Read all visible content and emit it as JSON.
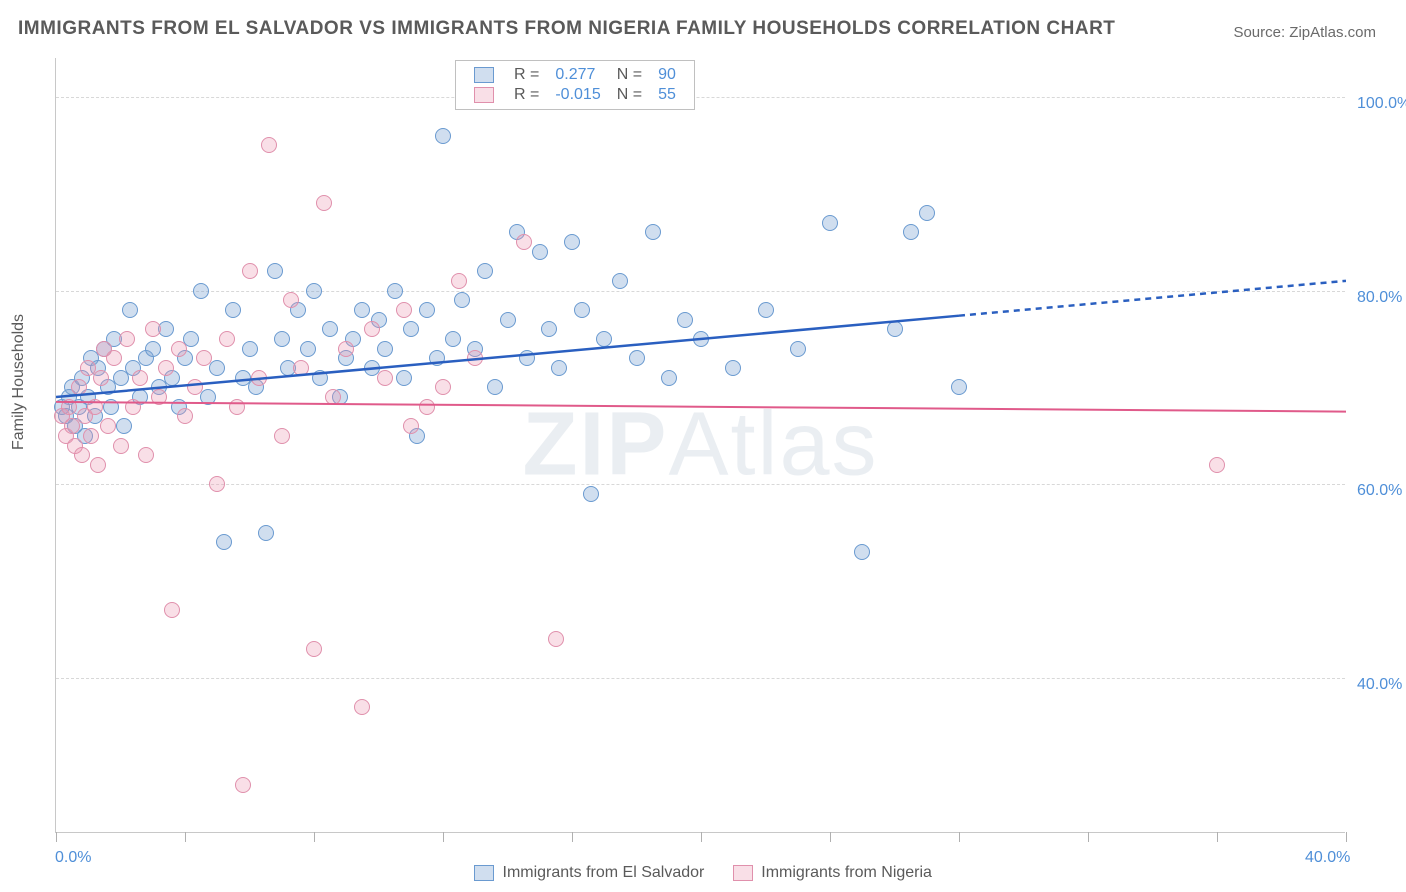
{
  "title": "IMMIGRANTS FROM EL SALVADOR VS IMMIGRANTS FROM NIGERIA FAMILY HOUSEHOLDS CORRELATION CHART",
  "source": "Source: ZipAtlas.com",
  "watermark_strong": "ZIP",
  "watermark_light": "Atlas",
  "ylabel": "Family Households",
  "chart": {
    "type": "scatter",
    "background_color": "#ffffff",
    "grid_color": "#d8d8d8",
    "axis_color": "#c8c8c8",
    "title_fontsize": 19,
    "label_fontsize": 16,
    "tick_fontsize": 16,
    "xlim": [
      0,
      40
    ],
    "ylim": [
      24,
      104
    ],
    "x_ticks": [
      0,
      4,
      8,
      12,
      16,
      20,
      24,
      28,
      32,
      36,
      40
    ],
    "x_tick_labels": {
      "0": "0.0%",
      "40": "40.0%"
    },
    "y_grid": [
      40,
      60,
      80,
      100
    ],
    "y_tick_labels": {
      "40": "40.0%",
      "60": "60.0%",
      "80": "80.0%",
      "100": "100.0%"
    },
    "series": [
      {
        "name": "Immigrants from El Salvador",
        "label": "Immigrants from El Salvador",
        "color_fill": "rgba(120,160,210,0.35)",
        "color_stroke": "#6a9ad0",
        "marker": "circle",
        "marker_size": 16,
        "r_value": "0.277",
        "n_value": "90",
        "trend": {
          "x0": 0,
          "y0": 69,
          "x1": 40,
          "y1": 81,
          "solid_until_x": 28,
          "color": "#2a5fc0",
          "width": 2.5
        },
        "points": [
          [
            0.2,
            68
          ],
          [
            0.3,
            67
          ],
          [
            0.4,
            69
          ],
          [
            0.5,
            70
          ],
          [
            0.6,
            66
          ],
          [
            0.7,
            68
          ],
          [
            0.8,
            71
          ],
          [
            0.9,
            65
          ],
          [
            1.0,
            69
          ],
          [
            1.1,
            73
          ],
          [
            1.2,
            67
          ],
          [
            1.3,
            72
          ],
          [
            1.5,
            74
          ],
          [
            1.6,
            70
          ],
          [
            1.7,
            68
          ],
          [
            1.8,
            75
          ],
          [
            2.0,
            71
          ],
          [
            2.1,
            66
          ],
          [
            2.3,
            78
          ],
          [
            2.4,
            72
          ],
          [
            2.6,
            69
          ],
          [
            2.8,
            73
          ],
          [
            3.0,
            74
          ],
          [
            3.2,
            70
          ],
          [
            3.4,
            76
          ],
          [
            3.6,
            71
          ],
          [
            3.8,
            68
          ],
          [
            4.0,
            73
          ],
          [
            4.2,
            75
          ],
          [
            4.5,
            80
          ],
          [
            4.7,
            69
          ],
          [
            5.0,
            72
          ],
          [
            5.2,
            54
          ],
          [
            5.5,
            78
          ],
          [
            5.8,
            71
          ],
          [
            6.0,
            74
          ],
          [
            6.2,
            70
          ],
          [
            6.5,
            55
          ],
          [
            6.8,
            82
          ],
          [
            7.0,
            75
          ],
          [
            7.2,
            72
          ],
          [
            7.5,
            78
          ],
          [
            7.8,
            74
          ],
          [
            8.0,
            80
          ],
          [
            8.2,
            71
          ],
          [
            8.5,
            76
          ],
          [
            8.8,
            69
          ],
          [
            9.0,
            73
          ],
          [
            9.2,
            75
          ],
          [
            9.5,
            78
          ],
          [
            9.8,
            72
          ],
          [
            10.0,
            77
          ],
          [
            10.2,
            74
          ],
          [
            10.5,
            80
          ],
          [
            10.8,
            71
          ],
          [
            11.0,
            76
          ],
          [
            11.2,
            65
          ],
          [
            11.5,
            78
          ],
          [
            11.8,
            73
          ],
          [
            12.0,
            96
          ],
          [
            12.3,
            75
          ],
          [
            12.6,
            79
          ],
          [
            13.0,
            74
          ],
          [
            13.3,
            82
          ],
          [
            13.6,
            70
          ],
          [
            14.0,
            77
          ],
          [
            14.3,
            86
          ],
          [
            14.6,
            73
          ],
          [
            15.0,
            84
          ],
          [
            15.3,
            76
          ],
          [
            15.6,
            72
          ],
          [
            16.0,
            85
          ],
          [
            16.3,
            78
          ],
          [
            16.6,
            59
          ],
          [
            17.0,
            75
          ],
          [
            17.5,
            81
          ],
          [
            18.0,
            73
          ],
          [
            18.5,
            86
          ],
          [
            19.0,
            71
          ],
          [
            19.5,
            77
          ],
          [
            20.0,
            75
          ],
          [
            21.0,
            72
          ],
          [
            22.0,
            78
          ],
          [
            23.0,
            74
          ],
          [
            24.0,
            87
          ],
          [
            25.0,
            53
          ],
          [
            26.0,
            76
          ],
          [
            27.0,
            88
          ],
          [
            28.0,
            70
          ],
          [
            26.5,
            86
          ]
        ]
      },
      {
        "name": "Immigrants from Nigeria",
        "label": "Immigrants from Nigeria",
        "color_fill": "rgba(235,150,175,0.30)",
        "color_stroke": "#e090ac",
        "marker": "circle",
        "marker_size": 16,
        "r_value": "-0.015",
        "n_value": "55",
        "trend": {
          "x0": 0,
          "y0": 68.5,
          "x1": 40,
          "y1": 67.5,
          "solid_until_x": 40,
          "color": "#e05a8a",
          "width": 2
        },
        "points": [
          [
            0.2,
            67
          ],
          [
            0.3,
            65
          ],
          [
            0.4,
            68
          ],
          [
            0.5,
            66
          ],
          [
            0.6,
            64
          ],
          [
            0.7,
            70
          ],
          [
            0.8,
            63
          ],
          [
            0.9,
            67
          ],
          [
            1.0,
            72
          ],
          [
            1.1,
            65
          ],
          [
            1.2,
            68
          ],
          [
            1.3,
            62
          ],
          [
            1.4,
            71
          ],
          [
            1.5,
            74
          ],
          [
            1.6,
            66
          ],
          [
            1.8,
            73
          ],
          [
            2.0,
            64
          ],
          [
            2.2,
            75
          ],
          [
            2.4,
            68
          ],
          [
            2.6,
            71
          ],
          [
            2.8,
            63
          ],
          [
            3.0,
            76
          ],
          [
            3.2,
            69
          ],
          [
            3.4,
            72
          ],
          [
            3.6,
            47
          ],
          [
            3.8,
            74
          ],
          [
            4.0,
            67
          ],
          [
            4.3,
            70
          ],
          [
            4.6,
            73
          ],
          [
            5.0,
            60
          ],
          [
            5.3,
            75
          ],
          [
            5.6,
            68
          ],
          [
            6.0,
            82
          ],
          [
            6.3,
            71
          ],
          [
            6.6,
            95
          ],
          [
            5.8,
            29
          ],
          [
            7.0,
            65
          ],
          [
            7.3,
            79
          ],
          [
            7.6,
            72
          ],
          [
            8.0,
            43
          ],
          [
            8.3,
            89
          ],
          [
            8.6,
            69
          ],
          [
            9.0,
            74
          ],
          [
            9.5,
            37
          ],
          [
            9.8,
            76
          ],
          [
            10.2,
            71
          ],
          [
            10.8,
            78
          ],
          [
            11.5,
            68
          ],
          [
            12.5,
            81
          ],
          [
            13.0,
            73
          ],
          [
            14.5,
            85
          ],
          [
            15.5,
            44
          ],
          [
            11.0,
            66
          ],
          [
            12.0,
            70
          ],
          [
            36.0,
            62
          ]
        ]
      }
    ]
  },
  "legend_top": {
    "r_label": "R =",
    "n_label": "N ="
  },
  "legend_bottom": {
    "label_a": "Immigrants from El Salvador",
    "label_b": "Immigrants from Nigeria"
  }
}
